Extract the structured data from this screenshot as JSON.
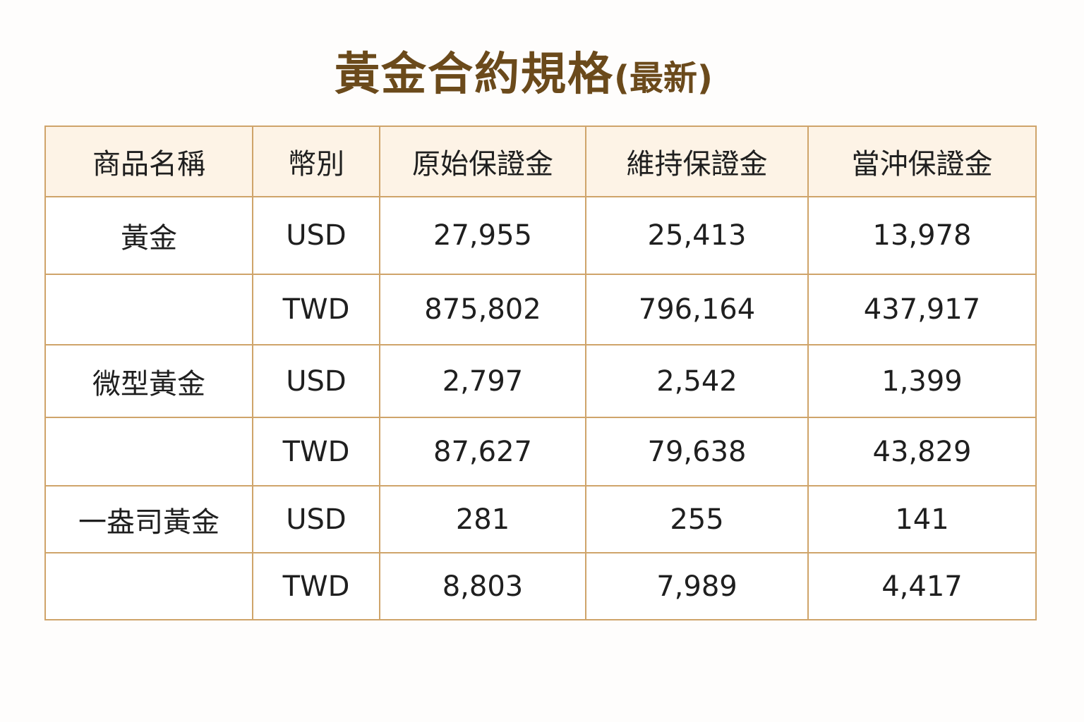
{
  "title": {
    "main": "黃金合約規格",
    "suffix": "(最新)"
  },
  "table": {
    "headers": [
      "商品名稱",
      "幣別",
      "原始保證金",
      "維持保證金",
      "當沖保證金"
    ],
    "rows": [
      {
        "product": "黃金",
        "currency": "USD",
        "initial": "27,955",
        "maintenance": "25,413",
        "daytrade": "13,978"
      },
      {
        "product": "",
        "currency": "TWD",
        "initial": "875,802",
        "maintenance": "796,164",
        "daytrade": "437,917"
      },
      {
        "product": "微型黃金",
        "currency": "USD",
        "initial": "2,797",
        "maintenance": "2,542",
        "daytrade": "1,399"
      },
      {
        "product": "",
        "currency": "TWD",
        "initial": "87,627",
        "maintenance": "79,638",
        "daytrade": "43,829"
      },
      {
        "product": "一盎司黃金",
        "currency": "USD",
        "initial": "281",
        "maintenance": "255",
        "daytrade": "141"
      },
      {
        "product": "",
        "currency": "TWD",
        "initial": "8,803",
        "maintenance": "7,989",
        "daytrade": "4,417"
      }
    ]
  },
  "colors": {
    "title": "#6b4a1b",
    "header_bg": "#fdf3e6",
    "border": "#cfa46a"
  }
}
